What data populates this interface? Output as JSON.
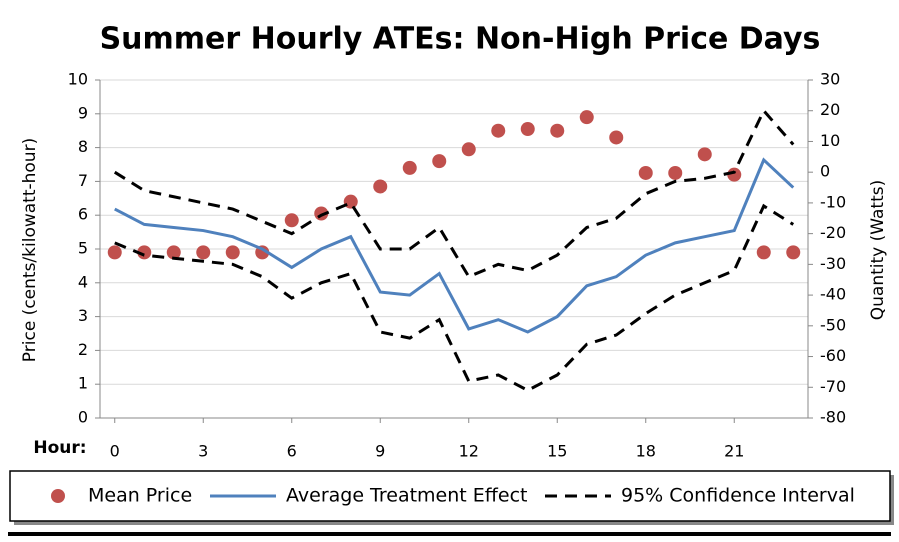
{
  "chart_data": {
    "type": "line",
    "title": "Summer Hourly ATEs: Non-High Price Days",
    "x_label": "Hour:",
    "y_label": "Price (cents/kilowatt-hour)",
    "y2_label": "Quantity (Watts)",
    "x": [
      0,
      1,
      2,
      3,
      4,
      5,
      6,
      7,
      8,
      9,
      10,
      11,
      12,
      13,
      14,
      15,
      16,
      17,
      18,
      19,
      20,
      21,
      22,
      23
    ],
    "xlim": [
      -0.5,
      23.5
    ],
    "xticks": [
      0,
      3,
      6,
      9,
      12,
      15,
      18,
      21
    ],
    "ylim": [
      0,
      10
    ],
    "yticks": [
      0,
      1,
      2,
      3,
      4,
      5,
      6,
      7,
      8,
      9,
      10
    ],
    "y2lim": [
      -80,
      30
    ],
    "y2ticks": [
      -80,
      -70,
      -60,
      -50,
      -40,
      -30,
      -20,
      -10,
      0,
      10,
      20,
      30
    ],
    "grid": true,
    "legend": "bottom",
    "series": [
      {
        "name": "Mean Price",
        "color": "#c0504d",
        "style": "dots",
        "values": [
          4.9,
          4.9,
          4.9,
          4.9,
          4.9,
          4.9,
          5.85,
          6.05,
          6.4,
          6.85,
          7.4,
          7.6,
          7.95,
          8.5,
          8.55,
          8.5,
          8.9,
          8.3,
          7.25,
          7.25,
          7.8,
          7.2,
          4.9,
          4.9
        ]
      },
      {
        "name": "Average Treatment Effect",
        "color": "#4f81bd",
        "style": "solid",
        "axis": "y2",
        "values": [
          -12,
          -17,
          -18,
          -19,
          -21,
          -25,
          -31,
          -25,
          -21,
          -39,
          -40,
          -33,
          -51,
          -48,
          -52,
          -47,
          -37,
          -34,
          -27,
          -23,
          -21,
          -19,
          4,
          -5
        ]
      },
      {
        "name": "95% Confidence Interval",
        "color": "#000000",
        "style": "dashed",
        "axis": "y2",
        "values": [
          0,
          -6,
          -8,
          -10,
          -12,
          -16,
          -20,
          -14,
          -10,
          -25,
          -25,
          -18,
          -34,
          -30,
          -32,
          -27,
          -18,
          -15,
          -7,
          -3,
          -2,
          0,
          20,
          9
        ],
        "lower": [
          -23,
          -27,
          -28,
          -29,
          -30,
          -34,
          -41,
          -36,
          -33,
          -52,
          -54,
          -48,
          -68,
          -66,
          -71,
          -66,
          -56,
          -53,
          -46,
          -40,
          -36,
          -32,
          -11,
          -17
        ]
      }
    ]
  }
}
